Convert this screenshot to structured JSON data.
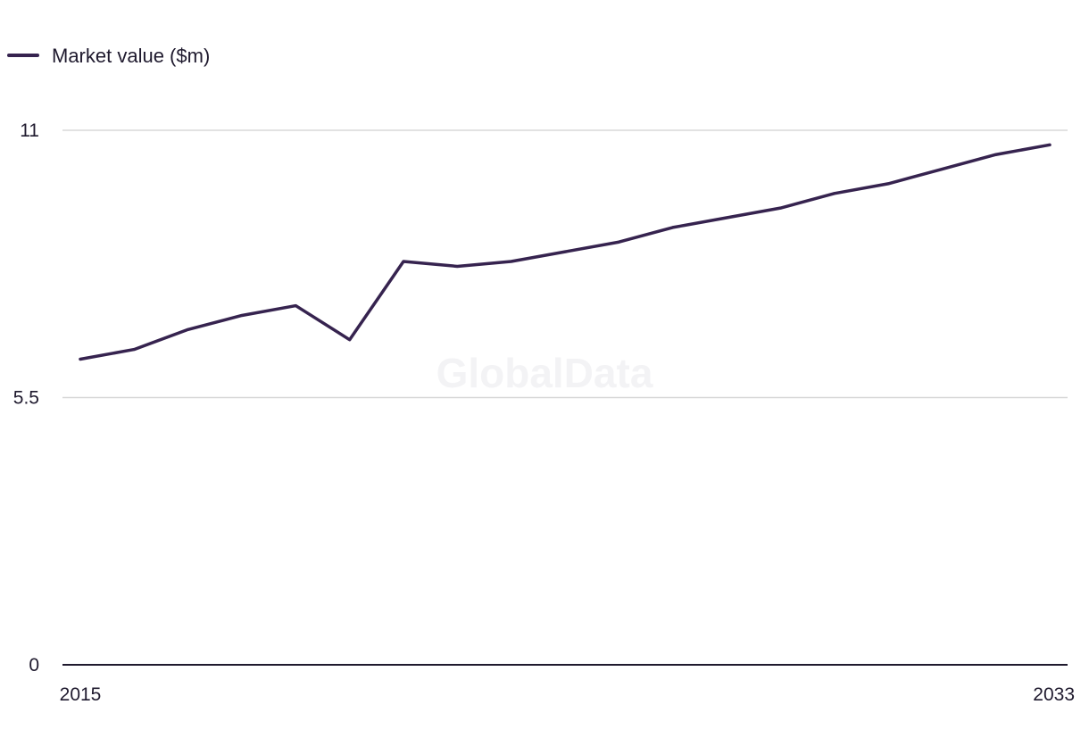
{
  "watermark": "GlobalData",
  "colors": {
    "series": "#36234f",
    "grid": "#d8d8d8",
    "axis": "#1f1a2e",
    "text": "#1f1a2e"
  },
  "chart_data": {
    "type": "line",
    "x": [
      2015,
      2016,
      2017,
      2018,
      2019,
      2020,
      2021,
      2022,
      2023,
      2024,
      2025,
      2026,
      2027,
      2028,
      2029,
      2030,
      2031,
      2032,
      2033
    ],
    "x_tick_labels": [
      "2015",
      "2033"
    ],
    "y_ticks": [
      0,
      5.5,
      11
    ],
    "y_tick_labels": [
      "0",
      "5.5",
      "11"
    ],
    "ylim": [
      0,
      11
    ],
    "grid": true,
    "legend_position": "top-left",
    "series": [
      {
        "name": "Market value ($m)",
        "values": [
          6.29,
          6.49,
          6.9,
          7.19,
          7.39,
          6.69,
          8.3,
          8.2,
          8.3,
          8.5,
          8.7,
          9.0,
          9.2,
          9.4,
          9.7,
          9.9,
          10.2,
          10.5,
          10.7
        ]
      }
    ]
  }
}
